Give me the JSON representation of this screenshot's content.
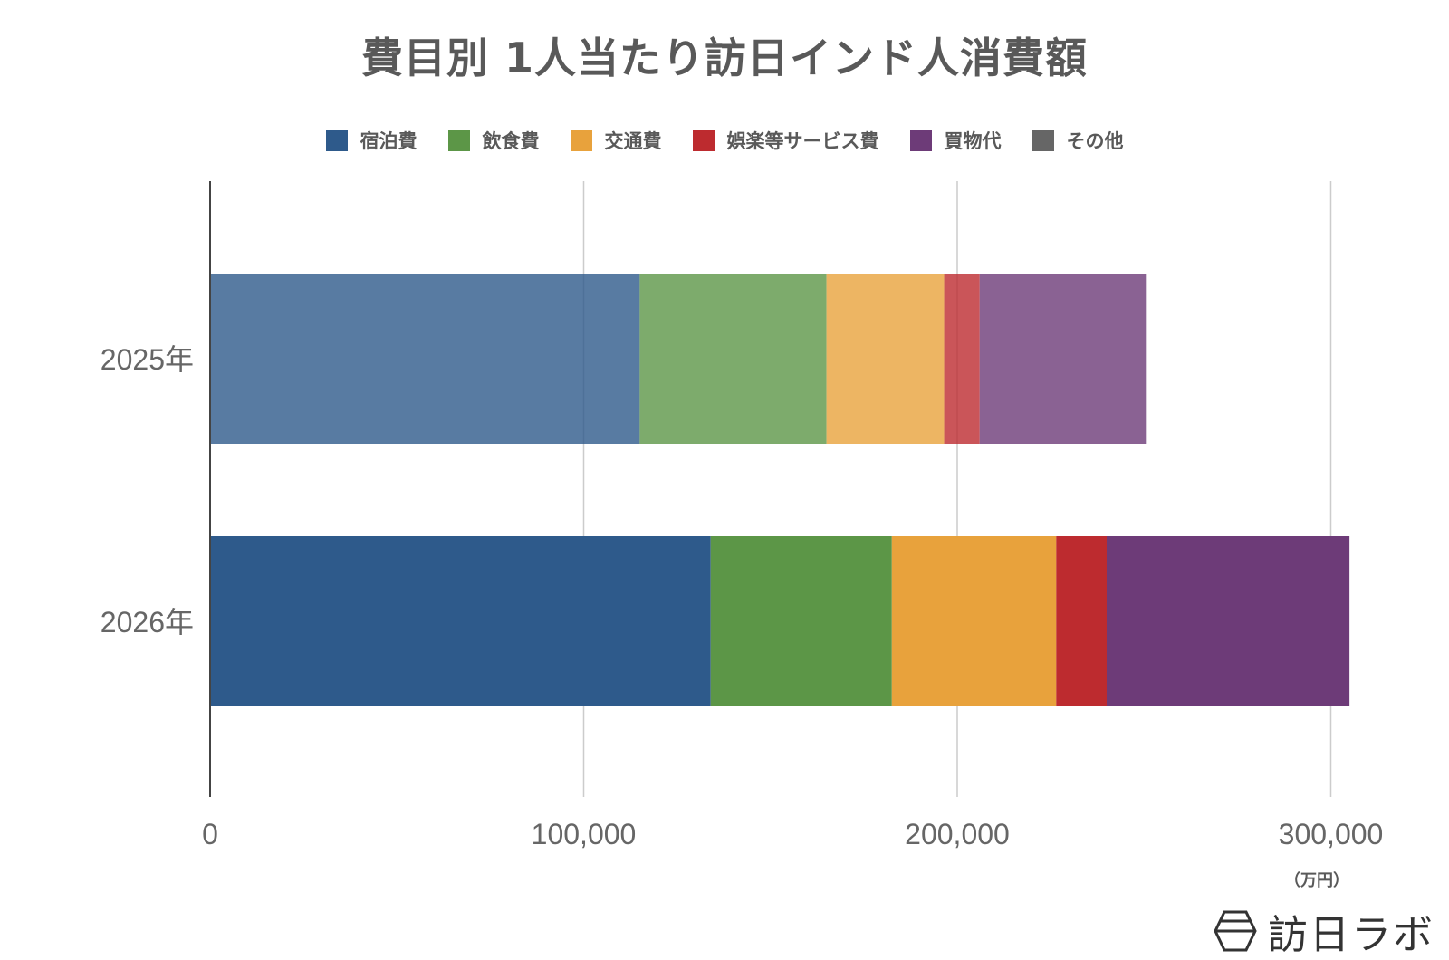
{
  "chart_data": {
    "type": "bar",
    "orientation": "horizontal",
    "stacked": true,
    "title": "費目別 1人当たり訪日インド人消費額",
    "categories": [
      "2025年",
      "2026年"
    ],
    "series": [
      {
        "name": "宿泊費",
        "color": "#2e5a8b",
        "values": [
          115000,
          134000
        ]
      },
      {
        "name": "飲食費",
        "color": "#5c9647",
        "values": [
          50000,
          48500
        ]
      },
      {
        "name": "交通費",
        "color": "#e8a23c",
        "values": [
          31500,
          44000
        ]
      },
      {
        "name": "娯楽等サービス費",
        "color": "#bd2b2f",
        "values": [
          9500,
          13500
        ]
      },
      {
        "name": "買物代",
        "color": "#6d3b78",
        "values": [
          44500,
          65000
        ]
      },
      {
        "name": "その他",
        "color": "#666666",
        "values": [
          0,
          0
        ]
      }
    ],
    "category_opacity": [
      0.8,
      1.0
    ],
    "xlim": [
      0,
      320000
    ],
    "xticks": [
      0,
      100000,
      200000,
      300000
    ],
    "xtick_labels": [
      "0",
      "100,000",
      "200,000",
      "300,000"
    ],
    "x_unit": "（万円）",
    "grid": true,
    "legend_position": "top"
  },
  "brand": {
    "name": "訪日ラボ"
  }
}
